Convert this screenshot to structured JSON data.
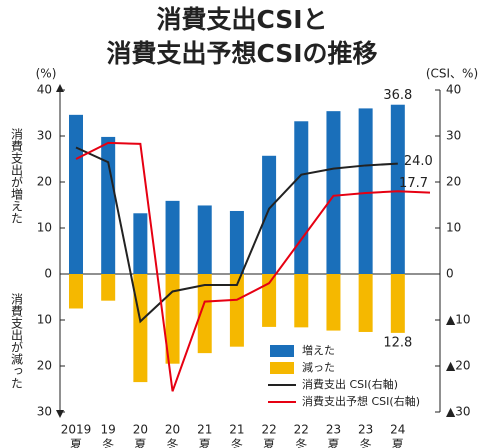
{
  "chart_data": {
    "type": "bar-line",
    "title": [
      "消費支出CSIと",
      "消費支出予想CSIの推移"
    ],
    "y_unit": "(%)",
    "y2_unit": "(CSI、%)",
    "y_label_up": "消費支出が増えた",
    "y_label_down": "消費支出が減った",
    "categories": [
      [
        "2019",
        "夏"
      ],
      [
        "19",
        "冬"
      ],
      [
        "20",
        "夏"
      ],
      [
        "20",
        "冬"
      ],
      [
        "21",
        "夏"
      ],
      [
        "21",
        "冬"
      ],
      [
        "22",
        "夏"
      ],
      [
        "22",
        "冬"
      ],
      [
        "23",
        "夏"
      ],
      [
        "23",
        "冬"
      ],
      [
        "24",
        "夏"
      ],
      null
    ],
    "ylim": [
      -30,
      40
    ],
    "yticks": [
      40,
      30,
      20,
      10,
      0,
      {
        "value": -10,
        "label": "10"
      },
      {
        "value": -20,
        "label": "20"
      },
      {
        "value": -30,
        "label": "30"
      }
    ],
    "y2lim": [
      -30,
      40
    ],
    "y2ticks": [
      40,
      30,
      20,
      10,
      0,
      {
        "value": -10,
        "label": "▲10"
      },
      {
        "value": -20,
        "label": "▲20"
      },
      {
        "value": -30,
        "label": "▲30"
      }
    ],
    "series": [
      {
        "name": "増えた",
        "kind": "bar",
        "color": "#1a6fba",
        "values": [
          34.6,
          29.8,
          13.2,
          15.9,
          14.9,
          13.7,
          25.7,
          33.2,
          35.4,
          36.0,
          36.8,
          null
        ],
        "value_labels": [
          null,
          null,
          null,
          null,
          null,
          null,
          null,
          null,
          null,
          null,
          "36.8",
          null
        ]
      },
      {
        "name": "減った",
        "kind": "bar",
        "color": "#f5b800",
        "values": [
          -7.5,
          -5.8,
          -23.5,
          -19.5,
          -17.2,
          -15.8,
          -11.5,
          -11.6,
          -12.3,
          -12.6,
          -12.8,
          null
        ],
        "value_labels": [
          null,
          null,
          null,
          null,
          null,
          null,
          null,
          null,
          null,
          null,
          "12.8",
          null
        ]
      },
      {
        "name": "消費支出 CSI(右軸)",
        "kind": "line",
        "axis": "y2",
        "color": "#222222",
        "values": [
          27.5,
          24.3,
          -10.3,
          -3.8,
          -2.4,
          -2.4,
          14.2,
          21.6,
          22.9,
          23.6,
          24.0,
          null
        ],
        "value_labels": [
          null,
          null,
          null,
          null,
          null,
          null,
          null,
          null,
          null,
          null,
          "24.0",
          null
        ]
      },
      {
        "name": "消費支出予想 CSI(右軸)",
        "kind": "line",
        "axis": "y2",
        "color": "#e60012",
        "values": [
          25.0,
          28.5,
          28.3,
          -25.5,
          -6.0,
          -5.6,
          -2.0,
          7.5,
          17.0,
          17.6,
          18.0,
          17.7
        ],
        "value_labels": [
          null,
          null,
          null,
          null,
          null,
          null,
          null,
          null,
          null,
          null,
          null,
          "17.7"
        ]
      }
    ]
  }
}
